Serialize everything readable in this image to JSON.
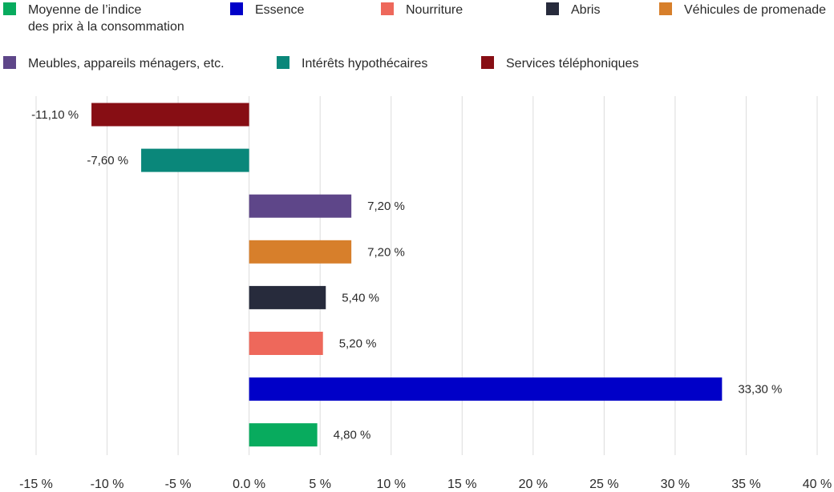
{
  "chart_data": {
    "type": "bar",
    "orientation": "horizontal",
    "title": "",
    "xlabel": "",
    "ylabel": "",
    "xlim": [
      -15,
      40
    ],
    "x_ticks": [
      -15,
      -10,
      -5,
      0,
      5,
      10,
      15,
      20,
      25,
      30,
      35,
      40
    ],
    "x_tick_labels": [
      "-15 %",
      "-10 %",
      "-5 %",
      "0.0 %",
      "5 %",
      "10 %",
      "15 %",
      "20 %",
      "25 %",
      "30 %",
      "35 %",
      "40 %"
    ],
    "grid": true,
    "legend_position": "top",
    "categories": [
      "Services téléphoniques",
      "Intérêts hypothécaires",
      "Meubles, appareils ménagers, etc.",
      "Véhicules de promenade",
      "Abris",
      "Nourriture",
      "Essence",
      "Moyenne de l’indice des prix à la consommation"
    ],
    "values": [
      -11.1,
      -7.6,
      7.2,
      7.2,
      5.4,
      5.2,
      33.3,
      4.8
    ],
    "value_labels": [
      "-11,10 %",
      "-7,60 %",
      "7,20 %",
      "7,20 %",
      "5,40 %",
      "5,20 %",
      "33,30 %",
      "4,80 %"
    ],
    "colors": [
      "#870e14",
      "#0a877a",
      "#5e4689",
      "#d77f2b",
      "#272b3c",
      "#ee685b",
      "#0000c8",
      "#08ab5e"
    ],
    "legend": [
      {
        "lines": [
          "Moyenne de l’indice",
          "des prix à la consommation"
        ],
        "color": "#08ab5e"
      },
      {
        "lines": [
          "Essence"
        ],
        "color": "#0000c8"
      },
      {
        "lines": [
          "Nourriture"
        ],
        "color": "#ee685b"
      },
      {
        "lines": [
          "Abris"
        ],
        "color": "#272b3c"
      },
      {
        "lines": [
          "Véhicules de promenade"
        ],
        "color": "#d77f2b"
      },
      {
        "lines": [
          "Meubles, appareils ménagers, etc."
        ],
        "color": "#5e4689"
      },
      {
        "lines": [
          "Intérêts hypothécaires"
        ],
        "color": "#0a877a"
      },
      {
        "lines": [
          "Services téléphoniques"
        ],
        "color": "#870e14"
      }
    ]
  }
}
